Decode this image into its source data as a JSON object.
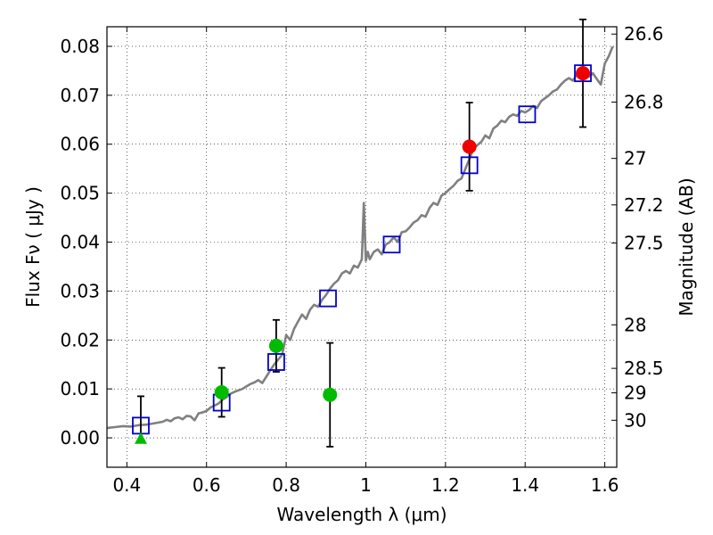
{
  "chart_data": {
    "type": "scatter",
    "title": "",
    "xlabel": "Wavelength  λ (μm)",
    "ylabel": "Flux  Fν  ( μJy )",
    "y2label": "Magnitude (AB)",
    "xlim": [
      0.35,
      1.63
    ],
    "ylim": [
      -0.006,
      0.084
    ],
    "grid": true,
    "x_ticks": [
      {
        "value": 0.4,
        "label": "0.4"
      },
      {
        "value": 0.6,
        "label": "0.6"
      },
      {
        "value": 0.8,
        "label": "0.8"
      },
      {
        "value": 1.0,
        "label": "1"
      },
      {
        "value": 1.2,
        "label": "1.2"
      },
      {
        "value": 1.4,
        "label": "1.4"
      },
      {
        "value": 1.6,
        "label": "1.6"
      }
    ],
    "y_ticks": [
      {
        "value": 0.0,
        "label": "0.00"
      },
      {
        "value": 0.01,
        "label": "0.01"
      },
      {
        "value": 0.02,
        "label": "0.02"
      },
      {
        "value": 0.03,
        "label": "0.03"
      },
      {
        "value": 0.04,
        "label": "0.04"
      },
      {
        "value": 0.05,
        "label": "0.05"
      },
      {
        "value": 0.06,
        "label": "0.06"
      },
      {
        "value": 0.07,
        "label": "0.07"
      },
      {
        "value": 0.08,
        "label": "0.08"
      }
    ],
    "y2_ticks": [
      {
        "flux": 0.0825,
        "label": "26.6"
      },
      {
        "flux": 0.0686,
        "label": "26.8"
      },
      {
        "flux": 0.0571,
        "label": "27"
      },
      {
        "flux": 0.0476,
        "label": "27.2"
      },
      {
        "flux": 0.0398,
        "label": "27.5"
      },
      {
        "flux": 0.0231,
        "label": "28"
      },
      {
        "flux": 0.0142,
        "label": "28.5"
      },
      {
        "flux": 0.0092,
        "label": "29"
      },
      {
        "flux": 0.0036,
        "label": "30"
      }
    ],
    "series": [
      {
        "kind": "model_spectrum",
        "color": "#808080",
        "x": [
          0.35,
          0.37,
          0.39,
          0.41,
          0.43,
          0.45,
          0.47,
          0.49,
          0.5,
          0.51,
          0.52,
          0.53,
          0.54,
          0.55,
          0.56,
          0.57,
          0.58,
          0.59,
          0.6,
          0.61,
          0.62,
          0.63,
          0.64,
          0.65,
          0.66,
          0.67,
          0.68,
          0.69,
          0.7,
          0.71,
          0.72,
          0.73,
          0.74,
          0.75,
          0.76,
          0.77,
          0.78,
          0.79,
          0.8,
          0.81,
          0.82,
          0.83,
          0.84,
          0.85,
          0.86,
          0.87,
          0.88,
          0.89,
          0.9,
          0.91,
          0.92,
          0.93,
          0.94,
          0.95,
          0.96,
          0.97,
          0.98,
          0.99,
          0.995,
          1.0,
          1.005,
          1.01,
          1.02,
          1.03,
          1.04,
          1.05,
          1.06,
          1.07,
          1.08,
          1.09,
          1.1,
          1.11,
          1.12,
          1.13,
          1.14,
          1.15,
          1.16,
          1.17,
          1.18,
          1.19,
          1.2,
          1.21,
          1.22,
          1.23,
          1.24,
          1.25,
          1.26,
          1.27,
          1.28,
          1.29,
          1.3,
          1.31,
          1.32,
          1.33,
          1.34,
          1.35,
          1.36,
          1.37,
          1.38,
          1.39,
          1.4,
          1.41,
          1.42,
          1.43,
          1.44,
          1.45,
          1.46,
          1.47,
          1.48,
          1.49,
          1.5,
          1.51,
          1.52,
          1.53,
          1.54,
          1.55,
          1.56,
          1.57,
          1.58,
          1.59,
          1.6,
          1.61,
          1.62
        ],
        "y": [
          0.002,
          0.0022,
          0.0024,
          0.0023,
          0.0026,
          0.0027,
          0.003,
          0.0033,
          0.0037,
          0.0034,
          0.004,
          0.0042,
          0.0038,
          0.0045,
          0.0044,
          0.0036,
          0.005,
          0.0052,
          0.0055,
          0.0062,
          0.0066,
          0.007,
          0.0078,
          0.0083,
          0.009,
          0.0094,
          0.0097,
          0.01,
          0.0105,
          0.011,
          0.0113,
          0.0118,
          0.0112,
          0.0125,
          0.0138,
          0.015,
          0.016,
          0.017,
          0.021,
          0.02,
          0.0223,
          0.0238,
          0.0252,
          0.0243,
          0.0262,
          0.0272,
          0.0268,
          0.0282,
          0.0292,
          0.0305,
          0.0315,
          0.0322,
          0.0336,
          0.0341,
          0.0336,
          0.0352,
          0.0348,
          0.0365,
          0.048,
          0.0362,
          0.038,
          0.0365,
          0.038,
          0.0385,
          0.0375,
          0.0395,
          0.04,
          0.041,
          0.04,
          0.042,
          0.0422,
          0.043,
          0.044,
          0.0445,
          0.0455,
          0.0452,
          0.047,
          0.048,
          0.0476,
          0.0495,
          0.05,
          0.0508,
          0.0515,
          0.0525,
          0.053,
          0.055,
          0.057,
          0.059,
          0.0598,
          0.0605,
          0.0618,
          0.0612,
          0.0632,
          0.0638,
          0.0648,
          0.0645,
          0.0656,
          0.0661,
          0.0658,
          0.0668,
          0.0665,
          0.067,
          0.0678,
          0.0674,
          0.0688,
          0.0694,
          0.07,
          0.0708,
          0.0712,
          0.0722,
          0.073,
          0.0735,
          0.073,
          0.0742,
          0.0744,
          0.075,
          0.0738,
          0.0745,
          0.0733,
          0.0722,
          0.0765,
          0.078,
          0.08
        ]
      },
      {
        "kind": "model_photometry",
        "marker": "square",
        "color": "#0000cc",
        "x": [
          0.435,
          0.638,
          0.775,
          0.905,
          1.065,
          1.26,
          1.405,
          1.545
        ],
        "y": [
          0.0025,
          0.0072,
          0.0155,
          0.0285,
          0.0395,
          0.0557,
          0.0661,
          0.0745
        ]
      },
      {
        "kind": "observed_optical",
        "marker": "circle",
        "color": "#00bb00",
        "x": [
          0.638,
          0.775,
          0.91
        ],
        "y": [
          0.0093,
          0.0188,
          0.0088
        ],
        "err": [
          0.005,
          0.0053,
          0.0106
        ]
      },
      {
        "kind": "observed_nir",
        "marker": "circle",
        "color": "#ee0000",
        "x": [
          1.26,
          1.545
        ],
        "y": [
          0.0595,
          0.0745
        ],
        "err": [
          0.009,
          0.011
        ]
      },
      {
        "kind": "upper_limit",
        "marker": "triangle",
        "color": "#00bb00",
        "x": [
          0.435
        ],
        "y": [
          -0.0003
        ],
        "err_hi": [
          0.0088
        ],
        "err_lo": [
          0.0
        ]
      }
    ]
  }
}
